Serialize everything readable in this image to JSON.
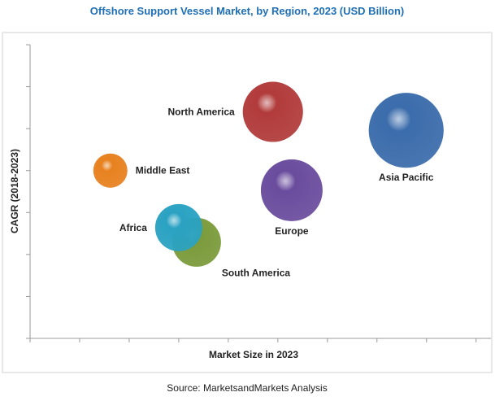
{
  "chart_data": {
    "type": "bubble",
    "title": "Offshore Support Vessel Market, by Region, 2023 (USD Billion)",
    "xlabel": "Market Size in 2023",
    "ylabel": "CAGR (2018-2023)",
    "source": "Source: MarketsandMarkets Analysis",
    "categories": [
      "Middle East",
      "North America",
      "Asia Pacific",
      "Europe",
      "South America",
      "Africa"
    ],
    "x": [
      1.62,
      4.9,
      7.59,
      5.28,
      3.36,
      3.0
    ],
    "values": [
      4.0,
      5.4,
      4.96,
      3.53,
      2.29,
      2.64
    ],
    "sizes": [
      4.4,
      13.7,
      21.2,
      14.4,
      9.0,
      8.4
    ],
    "colors": [
      "#e8821f",
      "#b23b3b",
      "#3b6cab",
      "#6b4c9e",
      "#7b9b3b",
      "#2ba2c2"
    ],
    "xlim": [
      0,
      9.3
    ],
    "ylim": [
      0,
      7
    ],
    "xticks": [
      0,
      1,
      2,
      3,
      4,
      5,
      6,
      7,
      8,
      9
    ],
    "yticks": [
      0,
      1,
      2,
      3,
      4,
      5,
      6,
      7
    ],
    "show_tick_labels": false
  }
}
